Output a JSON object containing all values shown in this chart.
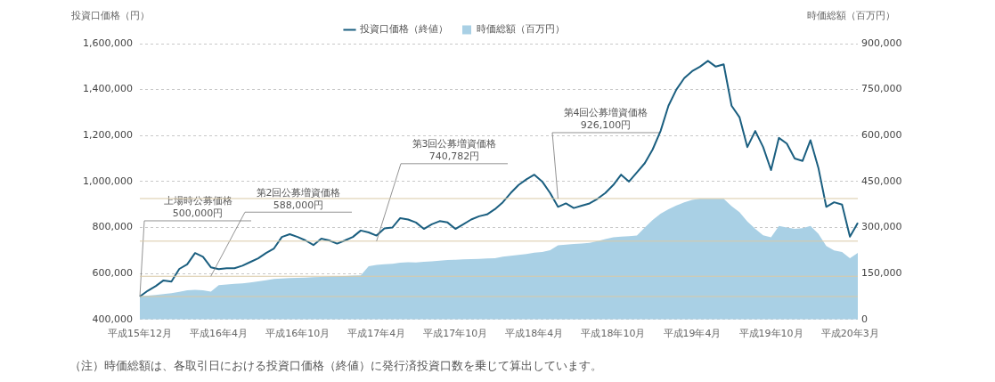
{
  "chart_data": {
    "type": "line",
    "ylabel": "投資口価格（円）",
    "y2label": "時価総額（百万円）",
    "categories": [
      "平成15年12月",
      null,
      null,
      null,
      null,
      null,
      null,
      null,
      null,
      null,
      "平成16年4月",
      null,
      null,
      null,
      null,
      null,
      null,
      null,
      null,
      null,
      "平成16年10月",
      null,
      null,
      null,
      null,
      null,
      null,
      null,
      null,
      null,
      "平成17年4月",
      null,
      null,
      null,
      null,
      null,
      null,
      null,
      null,
      null,
      "平成17年10月",
      null,
      null,
      null,
      null,
      null,
      null,
      null,
      null,
      null,
      "平成18年4月",
      null,
      null,
      null,
      null,
      null,
      null,
      null,
      null,
      null,
      "平成18年10月",
      null,
      null,
      null,
      null,
      null,
      null,
      null,
      null,
      null,
      "平成19年4月",
      null,
      null,
      null,
      null,
      null,
      null,
      null,
      null,
      null,
      "平成19年10月",
      null,
      null,
      null,
      null,
      null,
      null,
      null,
      null,
      null,
      "平成20年3月",
      null
    ],
    "series": [
      {
        "name": "時価総額（百万円）",
        "type": "area",
        "axis": "y2",
        "color": "#a9d0e5",
        "values": [
          76000,
          78000,
          80000,
          83000,
          86000,
          90000,
          95000,
          97000,
          95000,
          91000,
          112000,
          114000,
          116000,
          118000,
          121000,
          124000,
          128000,
          132000,
          134000,
          135000,
          136000,
          137000,
          138000,
          139000,
          140000,
          141000,
          142000,
          143000,
          144000,
          174000,
          178000,
          180000,
          182000,
          185000,
          187000,
          186000,
          188000,
          190000,
          192000,
          194000,
          195000,
          196000,
          197000,
          198000,
          199000,
          200000,
          205000,
          208000,
          211000,
          214000,
          218000,
          220000,
          226000,
          242000,
          244000,
          246000,
          248000,
          250000,
          256000,
          262000,
          268000,
          270000,
          272000,
          274000,
          300000,
          325000,
          345000,
          360000,
          372000,
          382000,
          390000,
          394000,
          394000,
          394000,
          394000,
          370000,
          350000,
          320000,
          296000,
          275000,
          268000,
          305000,
          300000,
          296000,
          298000,
          305000,
          280000,
          240000,
          225000,
          220000,
          200000,
          217000
        ]
      },
      {
        "name": "投資口価格（終値）",
        "color": "#1b5f80",
        "values": [
          500000,
          525000,
          545000,
          570000,
          565000,
          620000,
          640000,
          689000,
          673000,
          627000,
          619000,
          623000,
          623000,
          634000,
          650000,
          666000,
          689000,
          709000,
          759000,
          771000,
          759000,
          744000,
          724000,
          752000,
          744000,
          730000,
          744000,
          759000,
          787000,
          779000,
          765000,
          796000,
          800000,
          841000,
          835000,
          822000,
          794000,
          814000,
          828000,
          822000,
          794000,
          814000,
          835000,
          849000,
          857000,
          880000,
          910000,
          950000,
          985000,
          1010000,
          1030000,
          1000000,
          950000,
          890000,
          905000,
          885000,
          895000,
          905000,
          925000,
          950000,
          985000,
          1030000,
          1000000,
          1040000,
          1080000,
          1140000,
          1220000,
          1330000,
          1400000,
          1450000,
          1480000,
          1500000,
          1525000,
          1500000,
          1510000,
          1330000,
          1280000,
          1150000,
          1220000,
          1150000,
          1050000,
          1190000,
          1165000,
          1100000,
          1090000,
          1180000,
          1060000,
          890000,
          910000,
          900000,
          760000,
          820000
        ]
      }
    ],
    "ylim": [
      400000,
      1600000
    ],
    "yticks": [
      {
        "value": 400000,
        "label": "400,000"
      },
      {
        "value": 600000,
        "label": "600,000"
      },
      {
        "value": 800000,
        "label": "800,000"
      },
      {
        "value": 1000000,
        "label": "1,000,000"
      },
      {
        "value": 1200000,
        "label": "1,200,000"
      },
      {
        "value": 1400000,
        "label": "1,400,000"
      },
      {
        "value": 1600000,
        "label": "1,600,000"
      }
    ],
    "y2lim": [
      0,
      900000
    ],
    "y2ticks": [
      0,
      {
        "value": 150000,
        "label": "150,000"
      },
      {
        "value": 300000,
        "label": "300,000"
      },
      {
        "value": 450000,
        "label": "450,000"
      },
      {
        "value": 600000,
        "label": "600,000"
      },
      {
        "value": 750000,
        "label": "750,000"
      },
      {
        "value": 900000,
        "label": "900,000"
      }
    ],
    "ref_lines": [
      {
        "axis": "y",
        "value": 500000,
        "label": "上場時公募価格\n500,000円",
        "color": "#d9c9a6"
      },
      {
        "axis": "y",
        "value": 588000,
        "label": "第2回公募増資価格\n588,000円",
        "color": "#d9c9a6"
      },
      {
        "axis": "y",
        "value": 740782,
        "label": "第3回公募増資価格\n740,782円",
        "color": "#d9c9a6"
      },
      {
        "axis": "y",
        "value": 926100,
        "label": "第4回公募増資価格\n926,100円",
        "color": "#d9c9a6"
      }
    ],
    "grid": "y",
    "legend": "top",
    "annotations": [
      "（注）時価総額は、各取引日における投資口価格（終値）に発行済投資口数を乗じて算出しています。"
    ]
  }
}
